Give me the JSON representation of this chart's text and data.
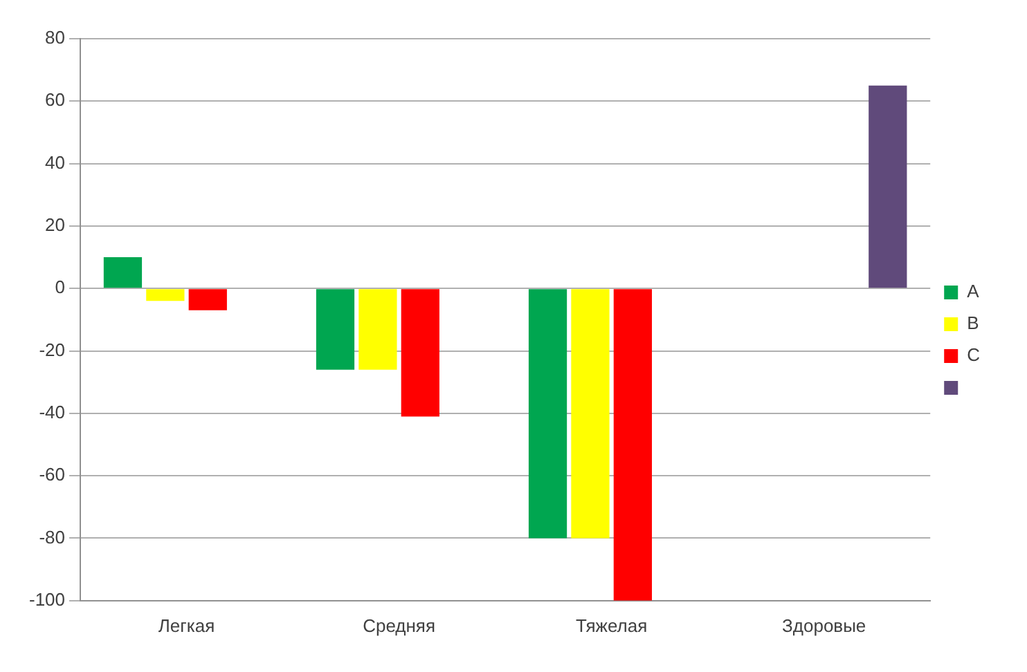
{
  "chart_data": {
    "type": "bar",
    "categories": [
      "Легкая",
      "Средняя",
      "Тяжелая",
      "Здоровые"
    ],
    "series": [
      {
        "name": "А",
        "color": "#00a650",
        "values": [
          10,
          -26,
          -80,
          null
        ]
      },
      {
        "name": "В",
        "color": "#ffff00",
        "values": [
          -4,
          -26,
          -80,
          null
        ]
      },
      {
        "name": "С",
        "color": "#ff0000",
        "values": [
          -7,
          -41,
          -100,
          null
        ]
      },
      {
        "color": "#604a7b",
        "values": [
          null,
          null,
          null,
          65
        ]
      }
    ],
    "ylim": [
      -100,
      80
    ],
    "yticks": [
      -100,
      -80,
      -60,
      -40,
      -20,
      0,
      20,
      40,
      60,
      80
    ],
    "grid": "y",
    "legend": "right"
  }
}
